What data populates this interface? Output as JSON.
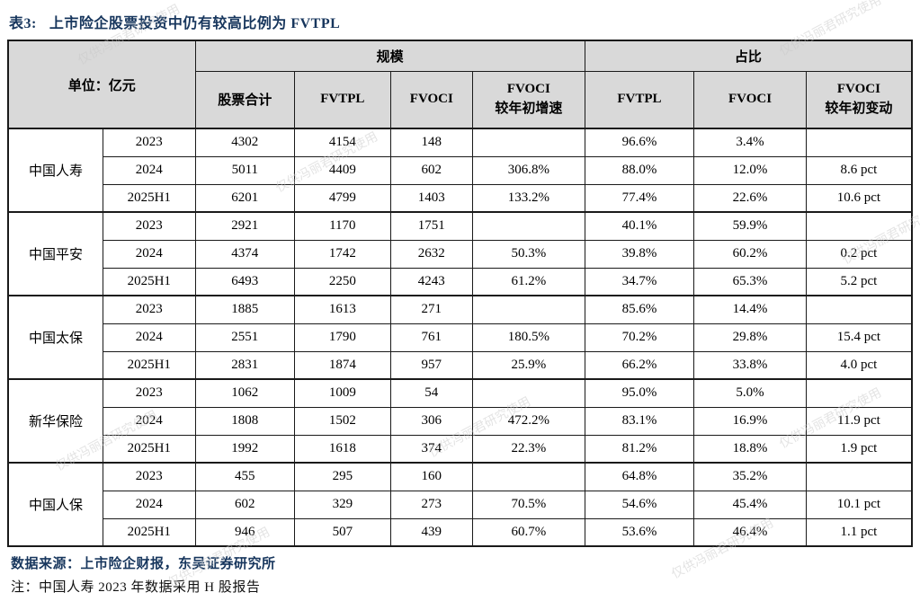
{
  "title": {
    "prefix": "表3:",
    "text": "上市险企股票投资中仍有较高比例为 FVTPL"
  },
  "watermark": "仅供冯丽君研究使用",
  "table": {
    "unit_header": "单位：亿元",
    "groups": [
      {
        "label": "规模"
      },
      {
        "label": "占比"
      }
    ],
    "columns": [
      {
        "label": "股票合计"
      },
      {
        "label": "FVTPL"
      },
      {
        "label": "FVOCI"
      },
      {
        "label": "FVOCI",
        "label2": "较年初增速"
      },
      {
        "label": "FVTPL"
      },
      {
        "label": "FVOCI"
      },
      {
        "label": "FVOCI",
        "label2": "较年初变动"
      }
    ],
    "companies": [
      {
        "name": "中国人寿",
        "rows": [
          [
            "2023",
            "4302",
            "4154",
            "148",
            "",
            "96.6%",
            "3.4%",
            ""
          ],
          [
            "2024",
            "5011",
            "4409",
            "602",
            "306.8%",
            "88.0%",
            "12.0%",
            "8.6 pct"
          ],
          [
            "2025H1",
            "6201",
            "4799",
            "1403",
            "133.2%",
            "77.4%",
            "22.6%",
            "10.6 pct"
          ]
        ]
      },
      {
        "name": "中国平安",
        "rows": [
          [
            "2023",
            "2921",
            "1170",
            "1751",
            "",
            "40.1%",
            "59.9%",
            ""
          ],
          [
            "2024",
            "4374",
            "1742",
            "2632",
            "50.3%",
            "39.8%",
            "60.2%",
            "0.2 pct"
          ],
          [
            "2025H1",
            "6493",
            "2250",
            "4243",
            "61.2%",
            "34.7%",
            "65.3%",
            "5.2 pct"
          ]
        ]
      },
      {
        "name": "中国太保",
        "rows": [
          [
            "2023",
            "1885",
            "1613",
            "271",
            "",
            "85.6%",
            "14.4%",
            ""
          ],
          [
            "2024",
            "2551",
            "1790",
            "761",
            "180.5%",
            "70.2%",
            "29.8%",
            "15.4 pct"
          ],
          [
            "2025H1",
            "2831",
            "1874",
            "957",
            "25.9%",
            "66.2%",
            "33.8%",
            "4.0 pct"
          ]
        ]
      },
      {
        "name": "新华保险",
        "rows": [
          [
            "2023",
            "1062",
            "1009",
            "54",
            "",
            "95.0%",
            "5.0%",
            ""
          ],
          [
            "2024",
            "1808",
            "1502",
            "306",
            "472.2%",
            "83.1%",
            "16.9%",
            "11.9 pct"
          ],
          [
            "2025H1",
            "1992",
            "1618",
            "374",
            "22.3%",
            "81.2%",
            "18.8%",
            "1.9 pct"
          ]
        ]
      },
      {
        "name": "中国人保",
        "rows": [
          [
            "2023",
            "455",
            "295",
            "160",
            "",
            "64.8%",
            "35.2%",
            ""
          ],
          [
            "2024",
            "602",
            "329",
            "273",
            "70.5%",
            "54.6%",
            "45.4%",
            "10.1 pct"
          ],
          [
            "2025H1",
            "946",
            "507",
            "439",
            "60.7%",
            "53.6%",
            "46.4%",
            "1.1 pct"
          ]
        ]
      }
    ]
  },
  "footer": {
    "source": "数据来源：上市险企财报，东吴证券研究所",
    "note": "注：中国人寿 2023 年数据采用 H 股报告"
  },
  "colors": {
    "title": "#17365d",
    "header_bg": "#d9d9d9",
    "border": "#1a1a1a"
  }
}
